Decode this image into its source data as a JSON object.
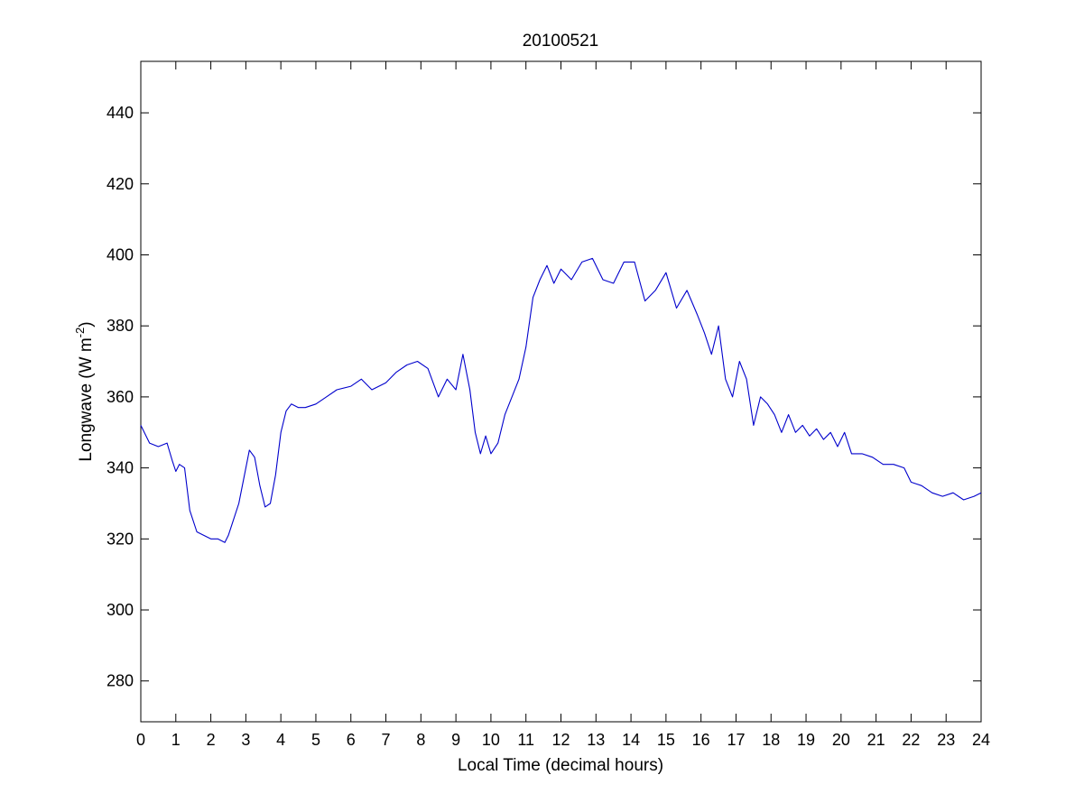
{
  "chart_data": {
    "type": "line",
    "title": "20100521",
    "xlabel": "Local Time (decimal hours)",
    "ylabel": {
      "text": "Longwave (W m",
      "superscript": "-2",
      "close": ")"
    },
    "xlim": [
      0,
      24
    ],
    "ylim": [
      268.5,
      454.5
    ],
    "xticks": [
      0,
      1,
      2,
      3,
      4,
      5,
      6,
      7,
      8,
      9,
      10,
      11,
      12,
      13,
      14,
      15,
      16,
      17,
      18,
      19,
      20,
      21,
      22,
      23,
      24
    ],
    "yticks": [
      280,
      300,
      320,
      340,
      360,
      380,
      400,
      420,
      440
    ],
    "grid": false,
    "legend": "none",
    "series": [
      {
        "color": "#0000cc",
        "x": [
          0.0,
          0.25,
          0.5,
          0.75,
          0.9,
          1.0,
          1.1,
          1.25,
          1.4,
          1.6,
          1.8,
          2.0,
          2.2,
          2.4,
          2.5,
          2.6,
          2.8,
          3.0,
          3.1,
          3.25,
          3.4,
          3.55,
          3.7,
          3.85,
          4.0,
          4.15,
          4.3,
          4.5,
          4.7,
          5.0,
          5.3,
          5.6,
          6.0,
          6.3,
          6.6,
          7.0,
          7.3,
          7.6,
          7.9,
          8.2,
          8.5,
          8.75,
          9.0,
          9.2,
          9.4,
          9.55,
          9.7,
          9.85,
          10.0,
          10.2,
          10.4,
          10.6,
          10.8,
          11.0,
          11.2,
          11.4,
          11.6,
          11.8,
          12.0,
          12.3,
          12.6,
          12.9,
          13.2,
          13.5,
          13.8,
          14.1,
          14.4,
          14.7,
          15.0,
          15.3,
          15.6,
          15.9,
          16.1,
          16.3,
          16.5,
          16.7,
          16.9,
          17.1,
          17.3,
          17.5,
          17.7,
          17.9,
          18.1,
          18.3,
          18.5,
          18.7,
          18.9,
          19.1,
          19.3,
          19.5,
          19.7,
          19.9,
          20.1,
          20.3,
          20.6,
          20.9,
          21.2,
          21.5,
          21.8,
          22.0,
          22.3,
          22.6,
          22.9,
          23.2,
          23.5,
          23.8,
          24.0
        ],
        "y": [
          352,
          347,
          346,
          347,
          342,
          339,
          341,
          340,
          328,
          322,
          321,
          320,
          320,
          319,
          321,
          324,
          330,
          340,
          345,
          343,
          335,
          329,
          330,
          338,
          350,
          356,
          358,
          357,
          357,
          358,
          360,
          362,
          363,
          365,
          362,
          364,
          367,
          369,
          370,
          368,
          360,
          365,
          362,
          372,
          362,
          350,
          344,
          349,
          344,
          347,
          355,
          360,
          365,
          374,
          388,
          393,
          397,
          392,
          396,
          393,
          398,
          399,
          393,
          392,
          398,
          398,
          387,
          390,
          395,
          385,
          390,
          383,
          378,
          372,
          380,
          365,
          360,
          370,
          365,
          352,
          360,
          358,
          355,
          350,
          355,
          350,
          352,
          349,
          351,
          348,
          350,
          346,
          350,
          344,
          344,
          343,
          341,
          341,
          340,
          336,
          335,
          333,
          332,
          333,
          331,
          332,
          333
        ]
      }
    ]
  }
}
